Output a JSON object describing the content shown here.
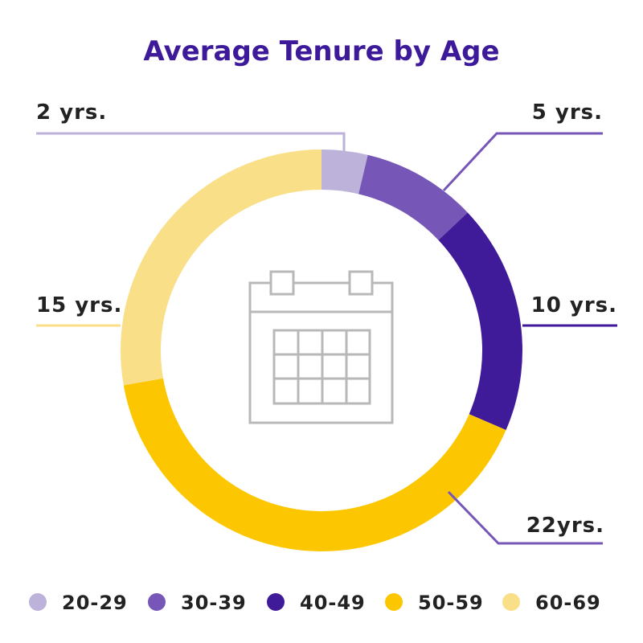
{
  "chart_data": {
    "type": "pie",
    "variant": "donut",
    "title": "Average Tenure by Age",
    "categories": [
      "20-29",
      "30-39",
      "40-49",
      "50-59",
      "60-69"
    ],
    "values": [
      2,
      5,
      10,
      22,
      15
    ],
    "value_labels": [
      "2 yrs.",
      "5 yrs.",
      "10 yrs.",
      "22yrs.",
      "15 yrs."
    ],
    "colors": [
      "#bdb2da",
      "#7656b6",
      "#3f1a99",
      "#fcc700",
      "#f9df87"
    ],
    "legend_position": "bottom",
    "center_icon": "calendar-icon"
  },
  "style": {
    "title_color": "#3d1a9a",
    "icon_color": "#b8b8b8"
  }
}
